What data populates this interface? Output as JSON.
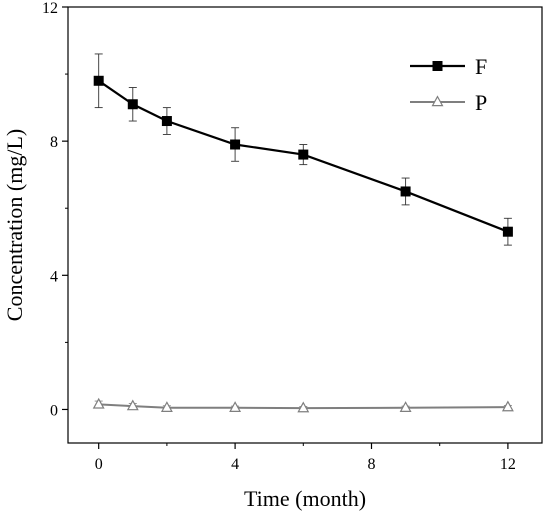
{
  "chart_data": {
    "type": "line",
    "xlabel": "Time (month)",
    "ylabel": "Concentration (mg/L)",
    "xlim": [
      -0.9,
      13.0
    ],
    "ylim": [
      -1.0,
      12.0
    ],
    "xticks": [
      0,
      4,
      8,
      12
    ],
    "yticks": [
      0,
      4,
      8,
      12
    ],
    "xtick_labels": [
      "0",
      "4",
      "8",
      "12"
    ],
    "ytick_labels": [
      "0",
      "4",
      "8",
      "12"
    ],
    "grid": false,
    "legend_position": "top-right",
    "series": [
      {
        "name": "F",
        "marker": "filled-square",
        "color": "#000000",
        "x": [
          0,
          1,
          2,
          4,
          6,
          9,
          12
        ],
        "y": [
          9.8,
          9.1,
          8.6,
          7.9,
          7.6,
          6.5,
          5.3
        ],
        "err": [
          0.8,
          0.5,
          0.4,
          0.5,
          0.3,
          0.4,
          0.4
        ]
      },
      {
        "name": "P",
        "marker": "open-triangle",
        "color": "#7f7f7f",
        "x": [
          0,
          1,
          2,
          4,
          6,
          9,
          12
        ],
        "y": [
          0.15,
          0.1,
          0.05,
          0.05,
          0.04,
          0.05,
          0.07
        ],
        "err": [
          0.1,
          0.08,
          0.06,
          0.05,
          0.05,
          0.05,
          0.05
        ]
      }
    ]
  }
}
